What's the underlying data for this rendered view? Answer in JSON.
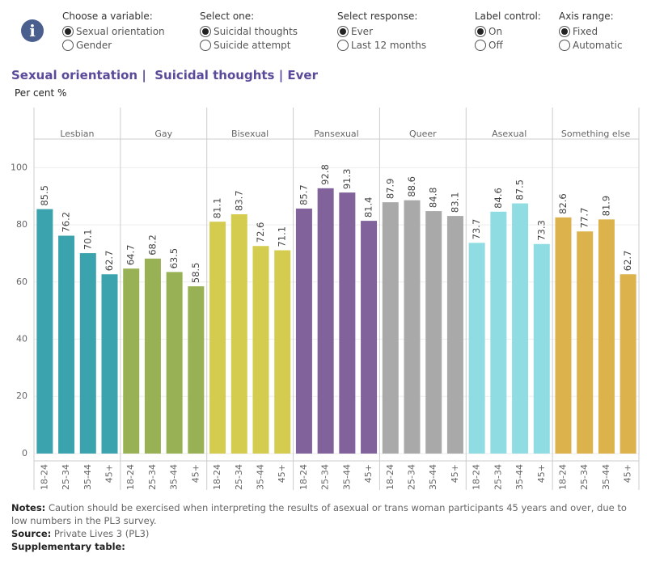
{
  "controls": [
    {
      "label": "Choose a variable:",
      "options": [
        "Sexual orientation",
        "Gender"
      ],
      "selected": 0
    },
    {
      "label": "Select one:",
      "options": [
        "Suicidal thoughts",
        "Suicide attempt"
      ],
      "selected": 0
    },
    {
      "label": "Select response:",
      "options": [
        "Ever",
        "Last 12 months"
      ],
      "selected": 0
    },
    {
      "label": "Label control:",
      "options": [
        "On",
        "Off"
      ],
      "selected": 0
    },
    {
      "label": "Axis range:",
      "options": [
        "Fixed",
        "Automatic"
      ],
      "selected": 0
    }
  ],
  "chart_data": {
    "type": "bar",
    "title": "Sexual orientation |  Suicidal thoughts | Ever",
    "y_label": "Per cent %",
    "ylim": [
      -2,
      110
    ],
    "yticks": [
      0,
      20,
      40,
      60,
      80,
      100
    ],
    "grid": true,
    "panels": [
      {
        "name": "Lesbian",
        "color": "#3aa3ad",
        "categories": [
          "18-24",
          "25-34",
          "35-44",
          "45+"
        ],
        "values": [
          85.5,
          76.2,
          70.1,
          62.7
        ]
      },
      {
        "name": "Gay",
        "color": "#98b155",
        "categories": [
          "18-24",
          "25-34",
          "35-44",
          "45+"
        ],
        "values": [
          64.7,
          68.2,
          63.5,
          58.5
        ]
      },
      {
        "name": "Bisexual",
        "color": "#d4cc4e",
        "categories": [
          "18-24",
          "25-34",
          "35-44",
          "45+"
        ],
        "values": [
          81.1,
          83.7,
          72.6,
          71.1
        ]
      },
      {
        "name": "Pansexual",
        "color": "#81629a",
        "categories": [
          "18-24",
          "25-34",
          "35-44",
          "45+"
        ],
        "values": [
          85.7,
          92.8,
          91.3,
          81.4
        ]
      },
      {
        "name": "Queer",
        "color": "#a9a9a9",
        "categories": [
          "18-24",
          "25-34",
          "35-44",
          "45+"
        ],
        "values": [
          87.9,
          88.6,
          84.8,
          83.1
        ]
      },
      {
        "name": "Asexual",
        "color": "#8fdde3",
        "categories": [
          "18-24",
          "25-34",
          "35-44",
          "45+"
        ],
        "values": [
          73.7,
          84.6,
          87.5,
          73.3
        ]
      },
      {
        "name": "Something else",
        "color": "#dcb24d",
        "categories": [
          "18-24",
          "25-34",
          "35-44",
          "45+"
        ],
        "values": [
          82.6,
          77.7,
          81.9,
          62.7
        ]
      }
    ]
  },
  "footer": {
    "notes_label": "Notes:",
    "notes": "Caution should be exercised when interpreting the results of asexual or trans woman participants 45 years and over, due to low numbers in the PL3 survey.",
    "source_label": "Source:",
    "source": "Private Lives 3 (PL3)",
    "supplementary_label": "Supplementary table:"
  }
}
